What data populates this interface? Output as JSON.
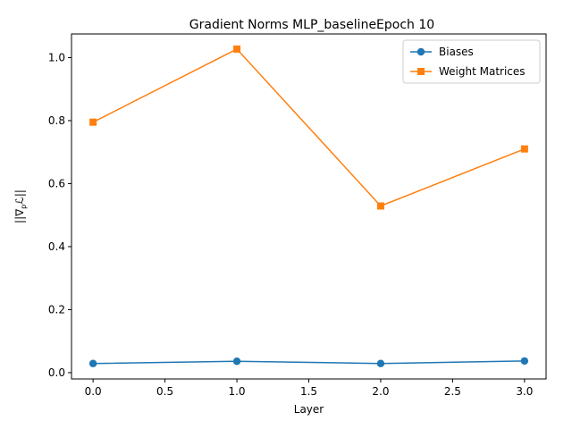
{
  "chart_data": {
    "type": "line",
    "title": "Gradient Norms MLP_baselineEpoch 10",
    "xlabel": "Layer",
    "ylabel": "||∇pℒ||",
    "x": [
      0,
      1,
      2,
      3
    ],
    "xlim": [
      -0.15,
      3.15
    ],
    "ylim": [
      -0.02,
      1.075
    ],
    "xticks": [
      0.0,
      0.5,
      1.0,
      1.5,
      2.0,
      2.5,
      3.0
    ],
    "xtick_labels": [
      "0.0",
      "0.5",
      "1.0",
      "1.5",
      "2.0",
      "2.5",
      "3.0"
    ],
    "yticks": [
      0.0,
      0.2,
      0.4,
      0.6,
      0.8,
      1.0
    ],
    "ytick_labels": [
      "0.0",
      "0.2",
      "0.4",
      "0.6",
      "0.8",
      "1.0"
    ],
    "grid": false,
    "legend_position": "top-right",
    "series": [
      {
        "name": "Biases",
        "color": "#1f77b4",
        "marker": "circle",
        "values": [
          0.029,
          0.036,
          0.029,
          0.037
        ]
      },
      {
        "name": "Weight Matrices",
        "color": "#ff7f0e",
        "marker": "square",
        "values": [
          0.795,
          1.027,
          0.529,
          0.71
        ]
      }
    ]
  }
}
